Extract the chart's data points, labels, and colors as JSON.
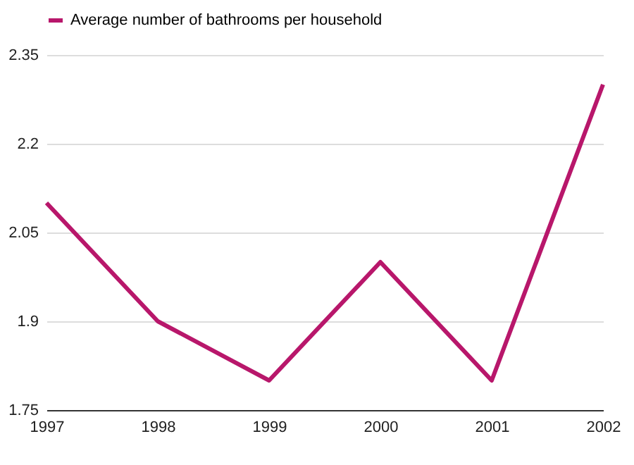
{
  "chart_data": {
    "type": "line",
    "categories": [
      "1997",
      "1998",
      "1999",
      "2000",
      "2001",
      "2002"
    ],
    "series": [
      {
        "name": "Average number of bathrooms per household",
        "color": "#b8176b",
        "values": [
          2.1,
          1.9,
          1.8,
          2.0,
          1.8,
          2.3
        ]
      }
    ],
    "ylim": [
      1.75,
      2.35
    ],
    "yticks": [
      1.75,
      1.9,
      2.05,
      2.2,
      2.35
    ],
    "grid": "y",
    "legend": "top",
    "marker": "none",
    "line_style": "solid"
  }
}
